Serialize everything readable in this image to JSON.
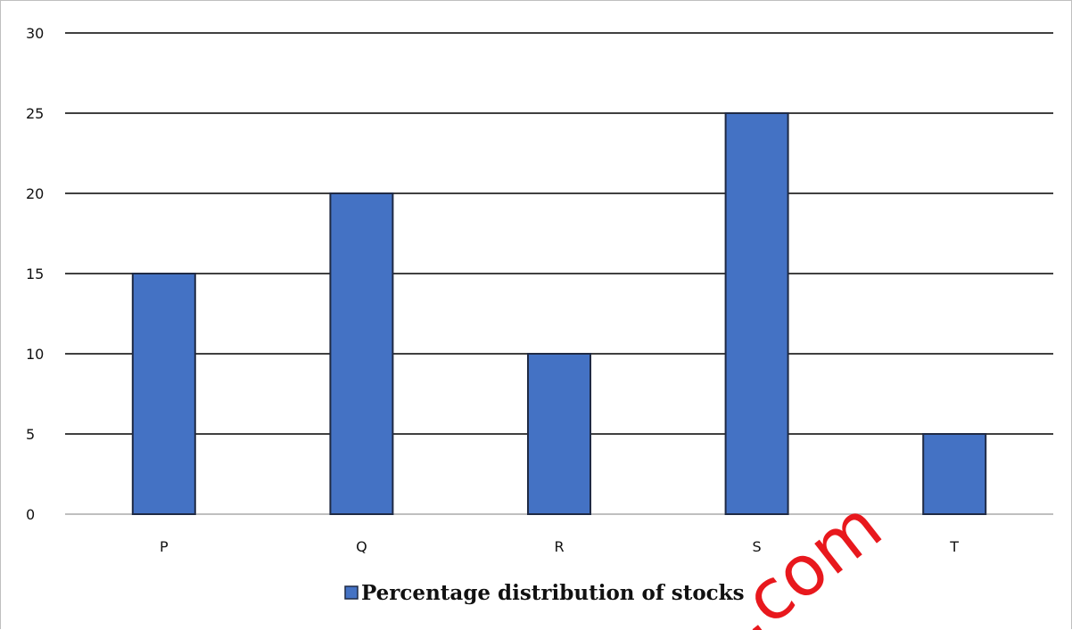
{
  "chart_data": {
    "type": "bar",
    "categories": [
      "P",
      "Q",
      "R",
      "S",
      "T"
    ],
    "series": [
      {
        "name": "Percentage distribution of stocks",
        "values": [
          15,
          20,
          10,
          25,
          5
        ],
        "color": "#4472c4"
      }
    ],
    "ylim": [
      0,
      30
    ],
    "yticks": [
      0,
      5,
      10,
      15,
      20,
      25,
      30
    ],
    "grid": true,
    "legend_position": "bottom-center"
  },
  "watermark": {
    "text": ".com",
    "color": "#e8181d"
  }
}
